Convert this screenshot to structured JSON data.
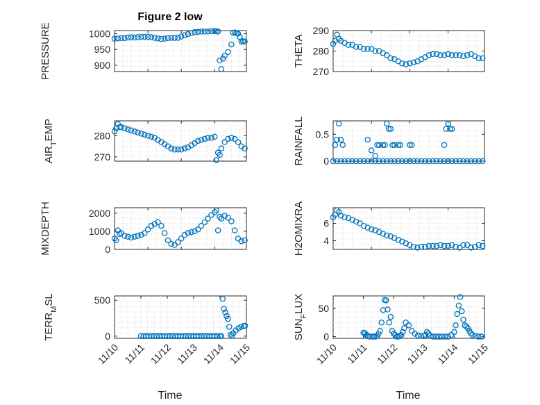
{
  "figure": {
    "title": "Figure 2 low",
    "xlabel": "Time",
    "xticks": [
      "11/10",
      "11/11",
      "11/12",
      "11/13",
      "11/14",
      "11/15"
    ],
    "marker_color": "#0072BD"
  },
  "chart_data": [
    {
      "type": "scatter",
      "id": "pressure",
      "title": "Figure 2 low",
      "ylabel": "PRESSURE",
      "ylim": [
        880,
        1010
      ],
      "yticks": [
        900,
        950,
        1000
      ],
      "ytick_labels": [
        "900",
        "950",
        "1000"
      ],
      "xlim": [
        11.0,
        14.95
      ],
      "grid": true,
      "x": [
        11.0,
        11.1,
        11.2,
        11.3,
        11.4,
        11.5,
        11.6,
        11.7,
        11.8,
        11.9,
        12.0,
        12.1,
        12.2,
        12.3,
        12.4,
        12.5,
        12.6,
        12.7,
        12.8,
        12.9,
        13.0,
        13.1,
        13.2,
        13.3,
        13.4,
        13.5,
        13.6,
        13.7,
        13.8,
        13.9,
        14.0,
        14.05,
        14.1,
        14.15,
        14.2,
        14.25,
        14.3,
        14.4,
        14.5,
        14.55,
        14.6,
        14.65,
        14.7,
        14.75,
        14.8,
        14.85,
        14.9
      ],
      "y": [
        984,
        985,
        986,
        986,
        988,
        989,
        988,
        989,
        990,
        990,
        990,
        989,
        987,
        985,
        983,
        984,
        986,
        987,
        987,
        987,
        991,
        995,
        999,
        1002,
        1005,
        1006,
        1007,
        1007,
        1007,
        1008,
        1008,
        1008,
        1007,
        915,
        888,
        921,
        930,
        942,
        966,
        1003,
        1004,
        1002,
        1000,
        990,
        975,
        976,
        975
      ]
    },
    {
      "type": "scatter",
      "id": "theta",
      "ylabel": "THETA",
      "ylim": [
        270,
        290
      ],
      "yticks": [
        270,
        280,
        290
      ],
      "ytick_labels": [
        "270",
        "280",
        "290"
      ],
      "xlim": [
        11.0,
        14.95
      ],
      "grid": true,
      "x": [
        11.0,
        11.05,
        11.1,
        11.15,
        11.2,
        11.3,
        11.4,
        11.5,
        11.6,
        11.7,
        11.8,
        11.9,
        12.0,
        12.1,
        12.2,
        12.3,
        12.4,
        12.5,
        12.6,
        12.7,
        12.8,
        12.9,
        13.0,
        13.1,
        13.2,
        13.3,
        13.4,
        13.5,
        13.6,
        13.7,
        13.8,
        13.9,
        14.0,
        14.1,
        14.2,
        14.3,
        14.4,
        14.5,
        14.6,
        14.7,
        14.8,
        14.9
      ],
      "y": [
        283.5,
        285,
        288,
        286,
        285,
        284,
        283,
        283,
        282,
        282,
        281,
        281,
        281,
        280,
        280,
        279,
        278,
        276.5,
        276,
        275,
        274,
        273.5,
        274,
        274.5,
        275,
        276,
        277,
        278,
        278.5,
        278.5,
        278,
        278,
        278.5,
        278,
        278,
        278,
        277.5,
        278,
        278.5,
        277.5,
        276.5,
        276.5
      ]
    },
    {
      "type": "scatter",
      "id": "air_temp",
      "ylabel": "AIR_TEMP",
      "ylim": [
        268,
        287
      ],
      "yticks": [
        270,
        280
      ],
      "ytick_labels": [
        "270",
        "280"
      ],
      "xlim": [
        11.0,
        14.95
      ],
      "grid": true,
      "x": [
        11.0,
        11.05,
        11.1,
        11.15,
        11.2,
        11.3,
        11.4,
        11.5,
        11.6,
        11.7,
        11.8,
        11.9,
        12.0,
        12.1,
        12.2,
        12.3,
        12.4,
        12.5,
        12.6,
        12.7,
        12.8,
        12.9,
        13.0,
        13.1,
        13.2,
        13.3,
        13.4,
        13.5,
        13.6,
        13.7,
        13.8,
        13.9,
        14.0,
        14.05,
        14.1,
        14.15,
        14.2,
        14.3,
        14.4,
        14.5,
        14.6,
        14.7,
        14.8,
        14.9
      ],
      "y": [
        282,
        283.5,
        285.5,
        284,
        284,
        283.5,
        283,
        282.5,
        282,
        281.5,
        281,
        280.5,
        280,
        279.5,
        279,
        278,
        277,
        276,
        275,
        274,
        273.5,
        273.5,
        273.5,
        274,
        274.5,
        275.5,
        276.5,
        277.5,
        278,
        278.5,
        279,
        279,
        279.5,
        268.5,
        272,
        271,
        274,
        277,
        278.5,
        279,
        278.5,
        277,
        275,
        274
      ]
    },
    {
      "type": "scatter",
      "id": "rainfall",
      "ylabel": "RAINFALL",
      "ylim": [
        0,
        0.75
      ],
      "yticks": [
        0,
        0.5
      ],
      "ytick_labels": [
        "0",
        "0.5"
      ],
      "xlim": [
        11.0,
        14.95
      ],
      "grid": true,
      "x": [
        11.0,
        11.1,
        11.2,
        11.3,
        11.4,
        11.5,
        11.6,
        11.7,
        11.8,
        11.9,
        12.0,
        12.1,
        12.2,
        12.3,
        12.4,
        12.5,
        12.6,
        12.7,
        12.8,
        12.9,
        13.0,
        13.1,
        13.2,
        13.3,
        13.4,
        13.5,
        13.6,
        13.7,
        13.8,
        13.9,
        14.0,
        14.1,
        14.2,
        14.3,
        14.4,
        14.5,
        14.6,
        14.7,
        14.8,
        14.9,
        11.05,
        11.1,
        11.15,
        11.2,
        11.25,
        11.9,
        12.0,
        12.1,
        12.15,
        12.2,
        12.3,
        12.35,
        12.4,
        12.45,
        12.5,
        12.55,
        12.6,
        12.7,
        12.75,
        13.0,
        13.05,
        13.9,
        13.95,
        14.0,
        14.05,
        14.1
      ],
      "y": [
        0,
        0,
        0,
        0,
        0,
        0,
        0,
        0,
        0,
        0,
        0,
        0,
        0,
        0,
        0,
        0,
        0,
        0,
        0,
        0,
        0,
        0,
        0,
        0,
        0,
        0,
        0,
        0,
        0,
        0,
        0,
        0,
        0,
        0,
        0,
        0,
        0,
        0,
        0,
        0,
        0.3,
        0.4,
        0.7,
        0.4,
        0.3,
        0.4,
        0.2,
        0.1,
        0.3,
        0.3,
        0.3,
        0.3,
        0.7,
        0.6,
        0.6,
        0.3,
        0.3,
        0.3,
        0.3,
        0.3,
        0.3,
        0.3,
        0.6,
        0.7,
        0.6,
        0.6
      ]
    },
    {
      "type": "scatter",
      "id": "mixdepth",
      "ylabel": "MIXDEPTH",
      "ylim": [
        0,
        2300
      ],
      "yticks": [
        0,
        1000,
        2000
      ],
      "ytick_labels": [
        "0",
        "1000",
        "2000"
      ],
      "xlim": [
        11.0,
        14.95
      ],
      "grid": true,
      "x": [
        11.0,
        11.05,
        11.1,
        11.15,
        11.2,
        11.3,
        11.4,
        11.5,
        11.6,
        11.7,
        11.8,
        11.9,
        12.0,
        12.1,
        12.2,
        12.3,
        12.4,
        12.5,
        12.6,
        12.7,
        12.8,
        12.9,
        13.0,
        13.1,
        13.2,
        13.3,
        13.4,
        13.5,
        13.6,
        13.7,
        13.8,
        13.9,
        14.0,
        14.05,
        14.1,
        14.15,
        14.2,
        14.3,
        14.4,
        14.5,
        14.6,
        14.7,
        14.8,
        14.9
      ],
      "y": [
        600,
        500,
        1050,
        850,
        900,
        750,
        700,
        650,
        700,
        750,
        800,
        900,
        1100,
        1300,
        1400,
        1500,
        1300,
        900,
        500,
        300,
        250,
        400,
        600,
        800,
        900,
        950,
        1000,
        1100,
        1300,
        1500,
        1700,
        1900,
        2050,
        2150,
        1050,
        1800,
        1700,
        1850,
        1750,
        1550,
        1050,
        600,
        450,
        500
      ]
    },
    {
      "type": "scatter",
      "id": "h2omixra",
      "ylabel": "H2OMIXRA",
      "ylim": [
        3,
        7.8
      ],
      "yticks": [
        4,
        6
      ],
      "ytick_labels": [
        "4",
        "6"
      ],
      "xlim": [
        11.0,
        14.95
      ],
      "grid": true,
      "x": [
        11.0,
        11.05,
        11.1,
        11.15,
        11.2,
        11.3,
        11.4,
        11.5,
        11.6,
        11.7,
        11.8,
        11.9,
        12.0,
        12.1,
        12.2,
        12.3,
        12.4,
        12.5,
        12.6,
        12.7,
        12.8,
        12.9,
        13.0,
        13.1,
        13.2,
        13.3,
        13.4,
        13.5,
        13.6,
        13.7,
        13.8,
        13.9,
        14.0,
        14.1,
        14.2,
        14.3,
        14.4,
        14.5,
        14.6,
        14.7,
        14.8,
        14.9
      ],
      "y": [
        6.7,
        7.0,
        7.5,
        7.3,
        6.9,
        6.7,
        6.6,
        6.4,
        6.2,
        6.0,
        5.7,
        5.5,
        5.3,
        5.2,
        5.0,
        4.8,
        4.6,
        4.5,
        4.3,
        4.1,
        3.9,
        3.7,
        3.5,
        3.3,
        3.2,
        3.3,
        3.3,
        3.4,
        3.4,
        3.4,
        3.5,
        3.4,
        3.4,
        3.5,
        3.3,
        3.2,
        3.5,
        3.5,
        3.2,
        3.3,
        3.5,
        3.4
      ]
    },
    {
      "type": "scatter",
      "id": "terr_msl",
      "ylabel": "TERR_MSL",
      "ylim": [
        -30,
        560
      ],
      "yticks": [
        0,
        500
      ],
      "ytick_labels": [
        "0",
        "500"
      ],
      "xlim": [
        10.0,
        15.0
      ],
      "grid": true,
      "x": [
        11.0,
        11.1,
        11.2,
        11.3,
        11.4,
        11.5,
        11.6,
        11.7,
        11.8,
        11.9,
        12.0,
        12.1,
        12.2,
        12.3,
        12.4,
        12.5,
        12.6,
        12.7,
        12.8,
        12.9,
        13.0,
        13.1,
        13.2,
        13.3,
        13.4,
        13.5,
        13.6,
        13.7,
        13.8,
        13.9,
        14.0,
        14.05,
        14.1,
        14.15,
        14.2,
        14.25,
        14.3,
        14.35,
        14.4,
        14.45,
        14.5,
        14.6,
        14.7,
        14.8,
        14.9,
        14.95
      ],
      "y": [
        0,
        0,
        0,
        0,
        0,
        0,
        0,
        0,
        0,
        0,
        0,
        0,
        0,
        0,
        0,
        0,
        0,
        0,
        0,
        0,
        0,
        0,
        0,
        0,
        0,
        0,
        0,
        0,
        0,
        0,
        0,
        0,
        520,
        380,
        330,
        280,
        240,
        130,
        20,
        5,
        40,
        80,
        110,
        130,
        140,
        145
      ]
    },
    {
      "type": "scatter",
      "id": "sun_flux",
      "ylabel": "SUN_FLUX",
      "ylim": [
        -3,
        72
      ],
      "yticks": [
        0,
        50
      ],
      "ytick_labels": [
        "0",
        "50"
      ],
      "xlim": [
        10.0,
        15.0
      ],
      "grid": true,
      "x": [
        11.0,
        11.05,
        11.1,
        11.15,
        11.2,
        11.3,
        11.35,
        11.4,
        11.45,
        11.5,
        11.55,
        11.6,
        11.65,
        11.7,
        11.75,
        11.8,
        11.85,
        11.9,
        11.95,
        12.0,
        12.05,
        12.1,
        12.15,
        12.2,
        12.25,
        12.3,
        12.35,
        12.4,
        12.5,
        12.6,
        12.7,
        12.8,
        12.9,
        13.0,
        13.05,
        13.1,
        13.15,
        13.2,
        13.3,
        13.4,
        13.5,
        13.6,
        13.7,
        13.8,
        13.9,
        14.0,
        14.05,
        14.1,
        14.15,
        14.2,
        14.25,
        14.3,
        14.35,
        14.4,
        14.45,
        14.5,
        14.55,
        14.6,
        14.7,
        14.8,
        14.9
      ],
      "y": [
        7,
        6,
        3,
        1,
        0,
        0,
        0,
        0,
        1,
        5,
        10,
        25,
        47,
        65,
        64,
        48,
        25,
        35,
        10,
        5,
        3,
        0,
        0,
        1,
        3,
        8,
        15,
        25,
        20,
        10,
        5,
        2,
        1,
        1,
        3,
        8,
        5,
        2,
        0,
        0,
        0,
        0,
        0,
        0,
        3,
        8,
        20,
        40,
        55,
        70,
        45,
        30,
        20,
        18,
        15,
        10,
        6,
        3,
        1,
        0,
        0
      ]
    }
  ]
}
